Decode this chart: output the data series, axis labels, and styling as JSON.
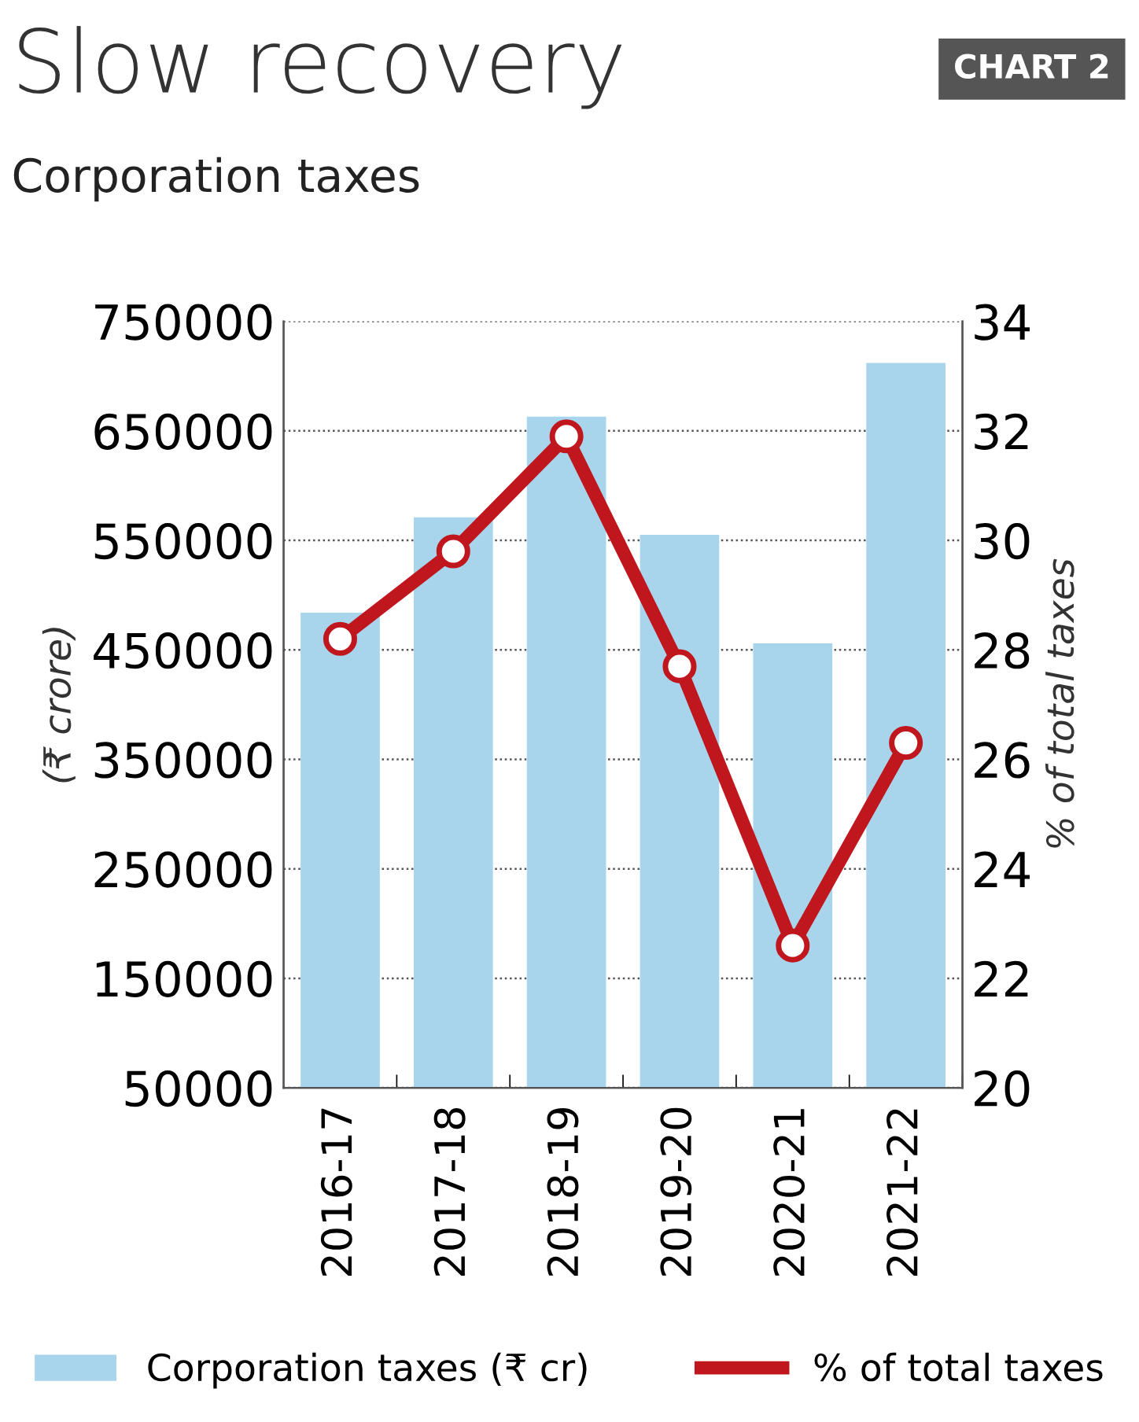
{
  "chart_data": {
    "type": "bar",
    "title": "Slow recovery",
    "subtitle": "Corporation taxes",
    "annotations": [
      "CHART 2"
    ],
    "ylabel": "(₹ crore)",
    "y2label": "% of total taxes",
    "categories": [
      "2016-17",
      "2017-18",
      "2018-19",
      "2019-20",
      "2020-21",
      "2021-22"
    ],
    "series": [
      {
        "name": "Corporation taxes (₹ cr)",
        "color": "#a8d5ec",
        "values": [
          484000,
          571000,
          663000,
          555000,
          456000,
          712000
        ]
      },
      {
        "name": "% of total taxes",
        "type": "line",
        "axis": "y2",
        "color": "#c0161e",
        "marker": "circle",
        "values": [
          28.2,
          29.8,
          31.9,
          27.7,
          22.6,
          26.3
        ]
      }
    ],
    "ylim": [
      50000,
      750000
    ],
    "yticks": [
      50000,
      150000,
      250000,
      350000,
      450000,
      550000,
      650000,
      750000
    ],
    "y2lim": [
      20,
      34
    ],
    "y2ticks": [
      20,
      22,
      24,
      26,
      28,
      30,
      32,
      34
    ],
    "grid": "y",
    "legend": "bottom"
  }
}
